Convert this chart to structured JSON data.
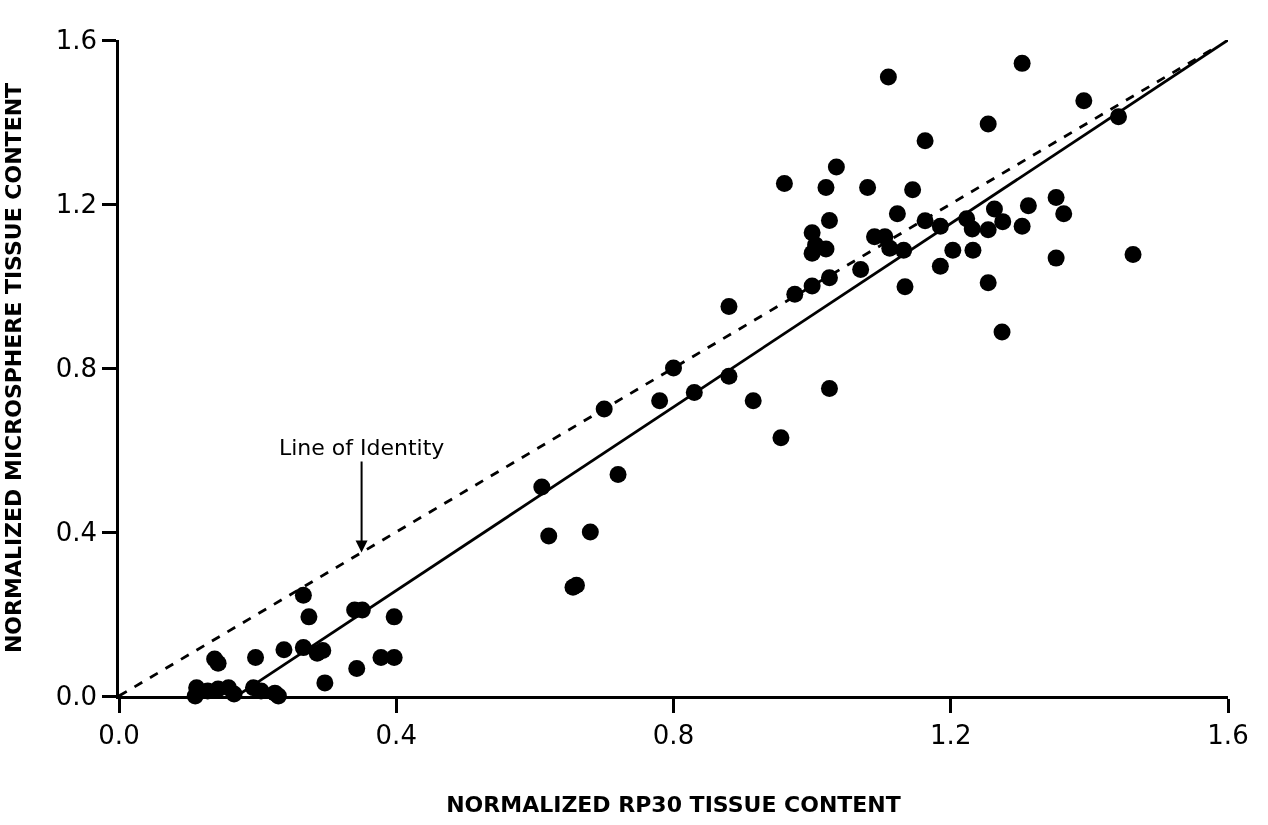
{
  "chart_data": {
    "type": "scatter",
    "xlabel": "NORMALIZED RP30 TISSUE CONTENT",
    "ylabel": "NORMALIZED MICROSPHERE TISSUE CONTENT",
    "xlim": [
      0,
      1.6
    ],
    "ylim": [
      0,
      1.6
    ],
    "xticks": [
      {
        "value": 0,
        "label": "0.0"
      },
      0.4,
      0.8,
      1.2,
      1.6
    ],
    "yticks": [
      {
        "value": 0,
        "label": "0.0"
      },
      0.4,
      0.8,
      1.2,
      1.6
    ],
    "marker": "circle",
    "annotations": [
      {
        "text": "Line of Identity",
        "x": 0.35,
        "y": 0.35
      }
    ],
    "series": [
      {
        "color": "#000000",
        "x": [
          0.112,
          0.11,
          0.128,
          0.143,
          0.158,
          0.166,
          0.194,
          0.205,
          0.225,
          0.23,
          0.138,
          0.143,
          0.197,
          0.238,
          0.266,
          0.274,
          0.266,
          0.294,
          0.286,
          0.297,
          0.34,
          0.351,
          0.343,
          0.378,
          0.397,
          0.397,
          0.61,
          0.62,
          0.68,
          0.72,
          0.655,
          0.66,
          0.7,
          0.78,
          0.8,
          0.83,
          0.88,
          0.915,
          0.955,
          1.025,
          0.88,
          0.96,
          0.975,
          1.0,
          1.0,
          1.0,
          1.005,
          1.02,
          1.02,
          1.025,
          1.025,
          1.035,
          1.07,
          1.08,
          1.09,
          1.105,
          1.11,
          1.112,
          1.123,
          1.132,
          1.134,
          1.145,
          1.163,
          1.163,
          1.185,
          1.185,
          1.203,
          1.223,
          1.231,
          1.232,
          1.254,
          1.254,
          1.254,
          1.263,
          1.274,
          1.275,
          1.303,
          1.303,
          1.312,
          1.352,
          1.352,
          1.363,
          1.392,
          1.442,
          1.463
        ],
        "values": [
          0.02,
          0.0,
          0.012,
          0.017,
          0.02,
          0.005,
          0.02,
          0.012,
          0.007,
          0.0,
          0.09,
          0.08,
          0.094,
          0.113,
          0.246,
          0.193,
          0.118,
          0.111,
          0.104,
          0.032,
          0.21,
          0.21,
          0.067,
          0.094,
          0.094,
          0.193,
          0.51,
          0.39,
          0.4,
          0.54,
          0.265,
          0.27,
          0.7,
          0.72,
          0.8,
          0.74,
          0.78,
          0.72,
          0.63,
          0.75,
          0.95,
          1.25,
          0.98,
          1.13,
          1.08,
          1.0,
          1.1,
          1.24,
          1.09,
          1.16,
          1.02,
          1.29,
          1.04,
          1.24,
          1.12,
          1.12,
          1.51,
          1.092,
          1.176,
          1.087,
          0.998,
          1.235,
          1.354,
          1.159,
          1.146,
          1.048,
          1.087,
          1.164,
          1.139,
          1.087,
          1.137,
          1.395,
          1.008,
          1.188,
          0.888,
          1.157,
          1.543,
          1.146,
          1.196,
          1.216,
          1.068,
          1.176,
          1.452,
          1.413,
          1.077
        ]
      },
      {
        "type": "line",
        "color": "#000000",
        "marker": "none",
        "line_style": "solid",
        "x": [
          0.17,
          1.6
        ],
        "values": [
          0,
          1.6
        ]
      },
      {
        "type": "line",
        "color": "#000000",
        "marker": "none",
        "line_style": "dashed",
        "x": [
          0,
          1.58
        ],
        "values": [
          0,
          1.58
        ]
      }
    ]
  }
}
